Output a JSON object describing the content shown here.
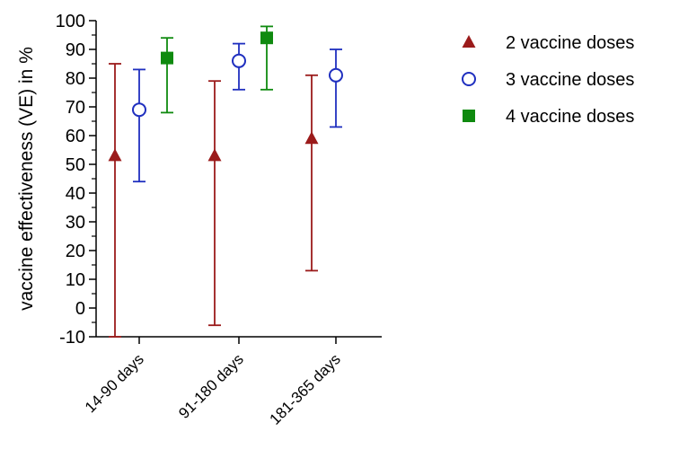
{
  "chart_data": {
    "type": "scatter",
    "title": "",
    "xlabel": "",
    "ylabel": "vaccine effectiveness (VE) in %",
    "ylim": [
      -10,
      100
    ],
    "yticks": [
      -10,
      0,
      10,
      20,
      30,
      40,
      50,
      60,
      70,
      80,
      90,
      100
    ],
    "minor_ticks_between": 1,
    "grid": false,
    "legend_position": "right",
    "categories": [
      "14-90 days",
      "91-180 days",
      "181-365 days"
    ],
    "series": [
      {
        "name": "2 vaccine doses",
        "marker": "triangle",
        "color": "#9b1b1b",
        "points": [
          {
            "category": "14-90 days",
            "value": 53,
            "lower": -10,
            "upper": 85
          },
          {
            "category": "91-180 days",
            "value": 53,
            "lower": -6,
            "upper": 79
          },
          {
            "category": "181-365 days",
            "value": 59,
            "lower": 13,
            "upper": 81
          }
        ]
      },
      {
        "name": "3 vaccine doses",
        "marker": "open-circle",
        "color": "#1f2fbf",
        "points": [
          {
            "category": "14-90 days",
            "value": 69,
            "lower": 44,
            "upper": 83
          },
          {
            "category": "91-180 days",
            "value": 86,
            "lower": 76,
            "upper": 92
          },
          {
            "category": "181-365 days",
            "value": 81,
            "lower": 63,
            "upper": 90
          }
        ]
      },
      {
        "name": "4  vaccine doses",
        "marker": "square",
        "color": "#0f8a0f",
        "points": [
          {
            "category": "14-90 days",
            "value": 87,
            "lower": 68,
            "upper": 94
          },
          {
            "category": "91-180 days",
            "value": 94,
            "lower": 76,
            "upper": 98
          }
        ]
      }
    ]
  }
}
